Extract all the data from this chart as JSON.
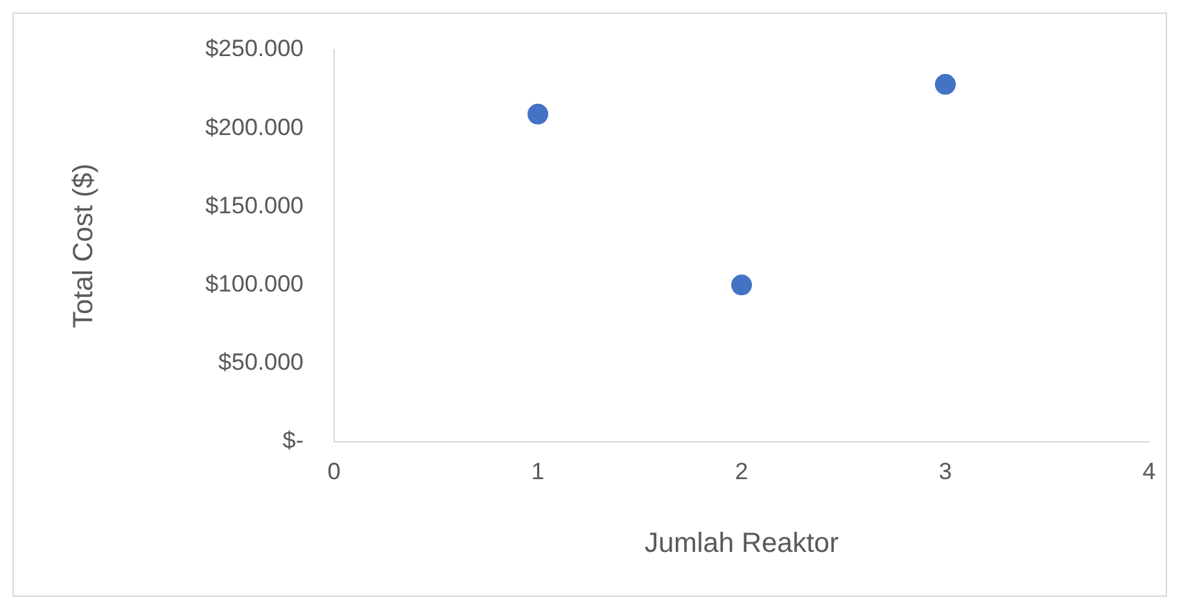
{
  "chart_data": {
    "type": "scatter",
    "xlabel": "Jumlah Reaktor",
    "ylabel": "Total Cost ($)",
    "x": [
      1,
      2,
      3
    ],
    "series": [
      {
        "color": "#4472c4",
        "values": [
          209000,
          100000,
          228000
        ]
      }
    ],
    "xlim": [
      0,
      4
    ],
    "xticks": [
      0,
      1,
      2,
      3,
      4
    ],
    "ylim": [
      0,
      250000
    ],
    "yticks": [
      {
        "value": 0,
        "label": "$-"
      },
      {
        "value": 50000,
        "label": "$50.000"
      },
      {
        "value": 100000,
        "label": "$100.000"
      },
      {
        "value": 150000,
        "label": "$150.000"
      },
      {
        "value": 200000,
        "label": "$200.000"
      },
      {
        "value": 250000,
        "label": "$250.000"
      }
    ],
    "grid": false,
    "legend": false,
    "marker": "circle"
  }
}
